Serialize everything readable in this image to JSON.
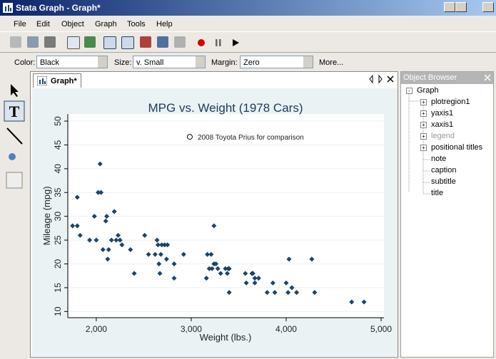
{
  "window": {
    "title": "Stata Graph - Graph*"
  },
  "menu": [
    "File",
    "Edit",
    "Object",
    "Graph",
    "Tools",
    "Help"
  ],
  "properties": {
    "color_label": "Color:",
    "color_value": "Black",
    "size_label": "Size:",
    "size_value": "v. Small",
    "margin_label": "Margin:",
    "margin_value": "Zero",
    "more": "More..."
  },
  "tab": "Graph*",
  "object_browser": {
    "title": "Object Browser",
    "root": "Graph",
    "items": [
      "plotregion1",
      "yaxis1",
      "xaxis1",
      "legend",
      "positional titles",
      "note",
      "caption",
      "subtitle",
      "title"
    ]
  },
  "chart_data": {
    "type": "scatter",
    "title": "MPG vs. Weight (1978 Cars)",
    "x_label": "Weight (lbs.)",
    "y_label": "Mileage (mpg)",
    "xlim": [
      1700,
      5030
    ],
    "ylim": [
      8.7,
      51.5
    ],
    "xticks": [
      {
        "value": 2000,
        "label": "2,000"
      },
      {
        "value": 3000,
        "label": "3,000"
      },
      {
        "value": 4000,
        "label": "4,000"
      },
      {
        "value": 5000,
        "label": "5,000"
      }
    ],
    "yticks": [
      10,
      15,
      20,
      25,
      30,
      35,
      40,
      45,
      50
    ],
    "grid": true,
    "x": [
      1750,
      1800,
      1800,
      1830,
      1930,
      1980,
      2000,
      2020,
      2040,
      2050,
      2070,
      2100,
      2110,
      2120,
      2130,
      2160,
      2190,
      2210,
      2230,
      2250,
      2270,
      2360,
      2400,
      2510,
      2550,
      2620,
      2640,
      2650,
      2660,
      2670,
      2680,
      2690,
      2720,
      2740,
      2750,
      2820,
      2820,
      2920,
      3160,
      3170,
      3190,
      3210,
      3220,
      3240,
      3240,
      3260,
      3280,
      3310,
      3360,
      3380,
      3390,
      3400,
      3400,
      3570,
      3580,
      3640,
      3650,
      3670,
      3670,
      3710,
      3800,
      3860,
      3880,
      4000,
      4020,
      4030,
      4060,
      4110,
      4270,
      4300,
      4690,
      4820
    ],
    "series": [
      {
        "color": "#1a476f",
        "values": [
          28,
          28,
          34,
          26,
          25,
          30,
          25,
          35,
          41,
          35,
          23,
          29,
          30,
          21,
          23,
          25,
          31,
          25,
          26,
          25,
          24,
          23,
          18,
          26,
          22,
          22,
          25,
          24,
          20,
          18,
          22,
          24,
          24,
          21,
          24,
          20,
          17,
          22,
          17,
          22,
          19,
          22,
          19,
          28,
          20,
          20,
          19,
          18,
          19,
          18,
          19,
          14,
          19,
          18,
          16,
          18,
          18,
          17,
          16,
          17,
          14,
          16,
          14,
          16,
          14,
          21,
          15,
          14,
          21,
          14,
          12,
          12
        ]
      }
    ],
    "annotation": {
      "text": "2008 Toyota Prius for comparison",
      "x": 2985,
      "y": 46.7
    }
  }
}
